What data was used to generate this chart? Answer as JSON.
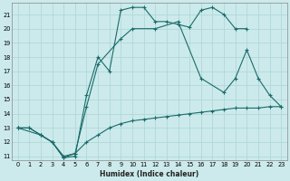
{
  "xlabel": "Humidex (Indice chaleur)",
  "xlim": [
    -0.5,
    23.5
  ],
  "ylim": [
    10.7,
    21.8
  ],
  "yticks": [
    11,
    12,
    13,
    14,
    15,
    16,
    17,
    18,
    19,
    20,
    21
  ],
  "xticks": [
    0,
    1,
    2,
    3,
    4,
    5,
    6,
    7,
    8,
    9,
    10,
    11,
    12,
    13,
    14,
    15,
    16,
    17,
    18,
    19,
    20,
    21,
    22,
    23
  ],
  "bg_color": "#cceaeb",
  "line_color": "#1a6b6b",
  "grid_color": "#b0d8da",
  "line1_x": [
    0,
    1,
    2,
    3,
    4,
    5,
    6,
    7,
    8,
    9,
    10,
    11,
    12,
    13,
    14,
    15,
    16,
    17,
    18,
    19,
    20
  ],
  "line1_y": [
    13,
    13,
    12.5,
    12,
    10.9,
    11.0,
    15.3,
    18.0,
    17.0,
    21.3,
    21.5,
    21.5,
    20.5,
    20.5,
    20.3,
    20.1,
    21.3,
    21.5,
    21.0,
    20.0,
    20.0
  ],
  "line2_x": [
    0,
    2,
    3,
    4,
    5,
    6,
    7,
    9,
    10,
    12,
    14,
    16,
    18,
    19,
    20,
    21,
    22,
    23
  ],
  "line2_y": [
    13,
    12.5,
    12,
    10.9,
    11.2,
    14.5,
    17.5,
    19.3,
    20.0,
    20.0,
    20.5,
    16.5,
    15.5,
    16.5,
    18.5,
    16.5,
    15.3,
    14.5
  ],
  "line3_x": [
    0,
    1,
    2,
    3,
    4,
    5,
    6,
    7,
    8,
    9,
    10,
    11,
    12,
    13,
    14,
    15,
    16,
    17,
    18,
    19,
    20,
    21,
    22,
    23
  ],
  "line3_y": [
    13,
    13.0,
    12.5,
    12.0,
    11.0,
    11.2,
    12.0,
    12.5,
    13.0,
    13.3,
    13.5,
    13.6,
    13.7,
    13.8,
    13.9,
    14.0,
    14.1,
    14.2,
    14.3,
    14.4,
    14.4,
    14.4,
    14.5,
    14.5
  ]
}
